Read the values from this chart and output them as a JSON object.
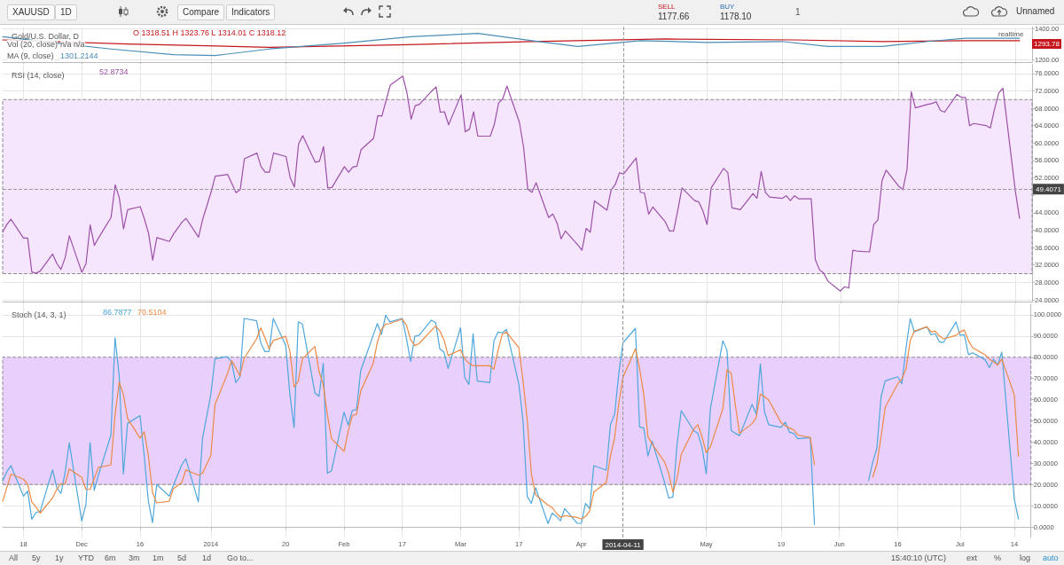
{
  "chart_data": [
    {
      "type": "line",
      "title": "Gold/U.S. Dollar, D",
      "annotations": [
        "XAUUSD",
        "1D",
        "Compare",
        "Indicators",
        "SELL",
        "1177.66",
        "BUY",
        "1178.10",
        "1",
        "Unnamed",
        "O 1318.51 H 1323.76 L 1314.01 C 1318.12",
        "Vol (20, close)",
        "n/a n/a",
        "MA (9, close)",
        "1301.2144",
        "realtime",
        "1293.78"
      ],
      "series": [
        {
          "color": "#c4161c",
          "x": [
            "2013-11-13",
            "2013-12-13",
            "2014-01-16",
            "2014-02-18",
            "2014-03-20",
            "2014-04-21",
            "2014-05-22",
            "2014-06-12",
            "2014-07-02",
            "2014-07-15"
          ],
          "values": [
            1326,
            1300,
            1279,
            1295,
            1316,
            1332,
            1326,
            1316,
            1321,
            1321
          ]
        },
        {
          "color": "#4b8db5",
          "x": [
            "2013-11-13",
            "2013-11-26",
            "2013-12-09",
            "2013-12-24",
            "2014-01-03",
            "2014-01-16",
            "2014-02-03",
            "2014-02-19",
            "2014-03-07",
            "2014-03-20",
            "2014-03-31",
            "2014-04-15",
            "2014-05-01",
            "2014-05-19",
            "2014-05-30",
            "2014-06-12",
            "2014-06-23",
            "2014-07-02",
            "2014-07-15"
          ],
          "values": [
            1347,
            1305,
            1268,
            1232,
            1226,
            1268,
            1305,
            1347,
            1368,
            1321,
            1284,
            1321,
            1310,
            1316,
            1284,
            1284,
            1316,
            1337,
            1337
          ]
        }
      ],
      "xlim": [
        "2013-11-13",
        "2014-07-18"
      ],
      "xticks": [
        {
          "value": "2013-11-18",
          "label": null
        },
        {
          "value": "2013-12-02",
          "label": null
        },
        {
          "value": "2013-12-16",
          "label": null
        },
        {
          "value": "2014-01-02",
          "label": null
        },
        {
          "value": "2014-01-20",
          "label": null
        },
        {
          "value": "2014-02-03",
          "label": null
        },
        {
          "value": "2014-02-17",
          "label": null
        },
        {
          "value": "2014-03-03",
          "label": null
        },
        {
          "value": "2014-03-17",
          "label": null
        },
        {
          "value": "2014-04-01",
          "label": null
        },
        {
          "value": "2014-05-01",
          "label": null
        },
        {
          "value": "2014-05-19",
          "label": null
        },
        {
          "value": "2014-06-02",
          "label": null
        },
        {
          "value": "2014-06-16",
          "label": null
        },
        {
          "value": "2014-07-01",
          "label": null
        },
        {
          "value": "2014-07-14",
          "label": null
        }
      ],
      "ylim": [
        1184,
        1410
      ],
      "yticks": [
        {
          "value": 1200,
          "label": "1200.00"
        },
        {
          "value": 1400,
          "label": "1400.00"
        }
      ],
      "ref_lines": [
        {
          "axis": "x",
          "value": "2014-04-11",
          "line_style": "dashed",
          "color": "#9a9a9a"
        }
      ],
      "grid": true,
      "tick_labels": "y"
    },
    {
      "type": "line",
      "title": "RSI (14, close)",
      "annotations": [
        "52.8734"
      ],
      "color": "#9c50a8",
      "x": [
        "2013-11-13",
        "2013-11-14",
        "2013-11-15",
        "2013-11-18",
        "2013-11-19",
        "2013-11-20",
        "2013-11-21",
        "2013-11-22",
        "2013-11-25",
        "2013-11-26",
        "2013-11-27",
        "2013-11-28",
        "2013-11-29",
        "2013-12-02",
        "2013-12-03",
        "2013-12-04",
        "2013-12-05",
        "2013-12-06",
        "2013-12-09",
        "2013-12-10",
        "2013-12-11",
        "2013-12-12",
        "2013-12-13",
        "2013-12-16",
        "2013-12-17",
        "2013-12-18",
        "2013-12-19",
        "2013-12-20",
        "2013-12-23",
        "2013-12-24",
        "2013-12-26",
        "2013-12-27",
        "2013-12-30",
        "2013-12-31",
        "2014-01-02",
        "2014-01-03",
        "2014-01-06",
        "2014-01-07",
        "2014-01-08",
        "2014-01-09",
        "2014-01-10",
        "2014-01-13",
        "2014-01-14",
        "2014-01-15",
        "2014-01-16",
        "2014-01-17",
        "2014-01-20",
        "2014-01-21",
        "2014-01-22",
        "2014-01-23",
        "2014-01-24",
        "2014-01-27",
        "2014-01-28",
        "2014-01-29",
        "2014-01-30",
        "2014-01-31",
        "2014-02-03",
        "2014-02-04",
        "2014-02-05",
        "2014-02-06",
        "2014-02-07",
        "2014-02-10",
        "2014-02-11",
        "2014-02-12",
        "2014-02-13",
        "2014-02-14",
        "2014-02-17",
        "2014-02-18",
        "2014-02-19",
        "2014-02-20",
        "2014-02-21",
        "2014-02-24",
        "2014-02-25",
        "2014-02-26",
        "2014-02-27",
        "2014-02-28",
        "2014-03-03",
        "2014-03-04",
        "2014-03-05",
        "2014-03-06",
        "2014-03-07",
        "2014-03-10",
        "2014-03-11",
        "2014-03-12",
        "2014-03-13",
        "2014-03-14",
        "2014-03-17",
        "2014-03-18",
        "2014-03-19",
        "2014-03-20",
        "2014-03-21",
        "2014-03-24",
        "2014-03-25",
        "2014-03-26",
        "2014-03-27",
        "2014-03-28",
        "2014-03-31",
        "2014-04-01",
        "2014-04-02",
        "2014-04-03",
        "2014-04-04",
        "2014-04-07",
        "2014-04-08",
        "2014-04-09",
        "2014-04-10",
        "2014-04-11",
        "2014-04-14",
        "2014-04-15",
        "2014-04-16",
        "2014-04-17",
        "2014-04-18",
        "2014-04-21",
        "2014-04-22",
        "2014-04-23",
        "2014-04-24",
        "2014-04-25",
        "2014-04-28",
        "2014-04-29",
        "2014-04-30",
        "2014-05-01",
        "2014-05-02",
        "2014-05-05",
        "2014-05-06",
        "2014-05-07",
        "2014-05-08",
        "2014-05-09",
        "2014-05-12",
        "2014-05-13",
        "2014-05-14",
        "2014-05-15",
        "2014-05-16",
        "2014-05-19",
        "2014-05-20",
        "2014-05-21",
        "2014-05-22",
        "2014-05-23",
        "2014-05-26",
        "2014-05-27",
        "2014-05-28",
        "2014-05-29",
        "2014-05-30",
        "2014-06-02",
        "2014-06-03",
        "2014-06-04",
        "2014-06-05",
        "2014-06-06",
        "2014-06-09",
        "2014-06-10",
        "2014-06-11",
        "2014-06-12",
        "2014-06-13",
        "2014-06-16",
        "2014-06-17",
        "2014-06-18",
        "2014-06-19",
        "2014-06-20",
        "2014-06-23",
        "2014-06-24",
        "2014-06-25",
        "2014-06-26",
        "2014-06-27",
        "2014-06-30",
        "2014-07-01",
        "2014-07-02",
        "2014-07-03",
        "2014-07-04",
        "2014-07-07",
        "2014-07-08",
        "2014-07-09",
        "2014-07-10",
        "2014-07-11",
        "2014-07-14",
        "2014-07-15"
      ],
      "values": [
        39.6,
        41.3,
        42.5,
        38.2,
        38.2,
        30.4,
        30.1,
        30.6,
        34.5,
        32.3,
        31.0,
        33.7,
        38.7,
        30.3,
        32.3,
        41.2,
        36.5,
        38.2,
        42.9,
        50.4,
        47.4,
        40.3,
        44.7,
        45.4,
        42.6,
        39.3,
        33.1,
        38.3,
        37.4,
        39.1,
        41.8,
        42.7,
        38.4,
        42.5,
        48.7,
        52.4,
        52.8,
        50.7,
        48.6,
        49.3,
        56.4,
        57.7,
        54.6,
        53.3,
        53.3,
        57.7,
        56.9,
        52.0,
        49.9,
        59.8,
        61.7,
        55.6,
        55.8,
        59.2,
        49.7,
        49.8,
        54.6,
        53.3,
        54.5,
        54.7,
        58.5,
        61.1,
        66.3,
        66.2,
        69.8,
        73.3,
        75.4,
        71.6,
        65.5,
        68.6,
        68.9,
        72.0,
        72.9,
        67.1,
        67.2,
        64.2,
        71.1,
        62.6,
        63.2,
        67.2,
        61.6,
        61.6,
        64.4,
        69.2,
        70.2,
        73.1,
        64.7,
        59.0,
        49.4,
        48.7,
        50.9,
        42.9,
        43.7,
        41.7,
        38.0,
        39.8,
        36.6,
        35.4,
        40.4,
        39.5,
        46.7,
        44.6,
        49.2,
        50.5,
        53.2,
        52.9,
        56.6,
        48.7,
        48.5,
        43.7,
        45.3,
        41.9,
        39.8,
        39.8,
        44.6,
        49.7,
        46.8,
        46.5,
        44.5,
        41.3,
        49.7,
        54.2,
        53.2,
        45.1,
        44.9,
        44.7,
        48.4,
        47.3,
        53.5,
        48.7,
        47.6,
        47.3,
        47.9,
        46.8,
        47.9,
        47.2,
        47.2,
        33.2,
        30.9,
        30.1,
        28.3,
        26.0,
        27.0,
        26.7,
        35.4,
        35.2,
        35.0,
        41.3,
        42.3,
        51.4,
        53.8,
        50.1,
        49.3,
        54.0,
        71.8,
        68.1,
        68.9,
        69.1,
        69.5,
        67.5,
        67.1,
        71.2,
        70.5,
        70.5,
        64.0,
        64.5,
        64.0,
        63.5,
        67.9,
        71.5,
        72.6,
        48.9,
        42.7
      ],
      "xlim": [
        "2013-11-13",
        "2014-07-18"
      ],
      "xticks": [
        {
          "value": "2013-11-18",
          "label": null
        },
        {
          "value": "2013-12-02",
          "label": null
        },
        {
          "value": "2013-12-16",
          "label": null
        },
        {
          "value": "2014-01-02",
          "label": null
        },
        {
          "value": "2014-01-20",
          "label": null
        },
        {
          "value": "2014-02-03",
          "label": null
        },
        {
          "value": "2014-02-17",
          "label": null
        },
        {
          "value": "2014-03-03",
          "label": null
        },
        {
          "value": "2014-03-17",
          "label": null
        },
        {
          "value": "2014-04-01",
          "label": null
        },
        {
          "value": "2014-05-01",
          "label": null
        },
        {
          "value": "2014-05-19",
          "label": null
        },
        {
          "value": "2014-06-02",
          "label": null
        },
        {
          "value": "2014-06-16",
          "label": null
        },
        {
          "value": "2014-07-01",
          "label": null
        },
        {
          "value": "2014-07-14",
          "label": null
        }
      ],
      "ylim": [
        23.5,
        78
      ],
      "yticks": [
        {
          "value": 24,
          "label": "24.0000"
        },
        {
          "value": 28,
          "label": "28.0000"
        },
        {
          "value": 32,
          "label": "32.0000"
        },
        {
          "value": 36,
          "label": "36.0000"
        },
        {
          "value": 40,
          "label": "40.0000"
        },
        {
          "value": 44,
          "label": "44.0000"
        },
        {
          "value": 48,
          "label": null
        },
        {
          "value": 52,
          "label": "52.0000"
        },
        {
          "value": 56,
          "label": "56.0000"
        },
        {
          "value": 60,
          "label": "60.0000"
        },
        {
          "value": 64,
          "label": "64.0000"
        },
        {
          "value": 68,
          "label": "68.0000"
        },
        {
          "value": 72,
          "label": "72.0000"
        },
        {
          "value": 76,
          "label": "76.0000"
        }
      ],
      "bands": [
        {
          "axis": "y",
          "from": 30,
          "to": 70,
          "color": "#f5e6fd"
        }
      ],
      "ref_lines": [
        {
          "axis": "y",
          "value": 49.4071,
          "label": "49.4071",
          "line_style": "dashed",
          "color": "#9a9a9a"
        },
        {
          "axis": "x",
          "value": "2014-04-11",
          "line_style": "dashed",
          "color": "#9a9a9a"
        }
      ],
      "grid": true,
      "tick_labels": "y"
    },
    {
      "type": "line",
      "title": "Stoch (14, 3, 1)",
      "annotations": [
        "86.7877",
        "70.5104",
        "All",
        "5y",
        "1y",
        "YTD",
        "6m",
        "3m",
        "1m",
        "5d",
        "1d",
        "Go to...",
        "15:40:10 (UTC)",
        "ext",
        "%",
        "log",
        "auto"
      ],
      "x": [
        "2013-11-13",
        "2013-11-14",
        "2013-11-15",
        "2013-11-18",
        "2013-11-19",
        "2013-11-20",
        "2013-11-21",
        "2013-11-22",
        "2013-11-25",
        "2013-11-26",
        "2013-11-27",
        "2013-11-28",
        "2013-11-29",
        "2013-12-02",
        "2013-12-03",
        "2013-12-04",
        "2013-12-05",
        "2013-12-06",
        "2013-12-09",
        "2013-12-10",
        "2013-12-11",
        "2013-12-12",
        "2013-12-13",
        "2013-12-16",
        "2013-12-17",
        "2013-12-18",
        "2013-12-19",
        "2013-12-20",
        "2013-12-23",
        "2013-12-24",
        "2013-12-26",
        "2013-12-27",
        "2013-12-30",
        "2013-12-31",
        "2014-01-02",
        "2014-01-03",
        "2014-01-06",
        "2014-01-07",
        "2014-01-08",
        "2014-01-09",
        "2014-01-10",
        "2014-01-13",
        "2014-01-14",
        "2014-01-15",
        "2014-01-16",
        "2014-01-17",
        "2014-01-20",
        "2014-01-21",
        "2014-01-22",
        "2014-01-23",
        "2014-01-24",
        "2014-01-27",
        "2014-01-28",
        "2014-01-29",
        "2014-01-30",
        "2014-01-31",
        "2014-02-03",
        "2014-02-04",
        "2014-02-05",
        "2014-02-06",
        "2014-02-07",
        "2014-02-10",
        "2014-02-11",
        "2014-02-12",
        "2014-02-13",
        "2014-02-14",
        "2014-02-17",
        "2014-02-18",
        "2014-02-19",
        "2014-02-20",
        "2014-02-21",
        "2014-02-24",
        "2014-02-25",
        "2014-02-26",
        "2014-02-27",
        "2014-02-28",
        "2014-03-03",
        "2014-03-04",
        "2014-03-05",
        "2014-03-06",
        "2014-03-07",
        "2014-03-10",
        "2014-03-11",
        "2014-03-12",
        "2014-03-13",
        "2014-03-14",
        "2014-03-17",
        "2014-03-18",
        "2014-03-19",
        "2014-03-20",
        "2014-03-21",
        "2014-03-24",
        "2014-03-25",
        "2014-03-26",
        "2014-03-27",
        "2014-03-28",
        "2014-03-31",
        "2014-04-01",
        "2014-04-02",
        "2014-04-03",
        "2014-04-04",
        "2014-04-07",
        "2014-04-08",
        "2014-04-09",
        "2014-04-10",
        "2014-04-11",
        "2014-04-14",
        "2014-04-15",
        "2014-04-16",
        "2014-04-17",
        "2014-04-18",
        "2014-04-21",
        "2014-04-22",
        "2014-04-23",
        "2014-04-24",
        "2014-04-25",
        "2014-04-28",
        "2014-04-29",
        "2014-04-30",
        "2014-05-01",
        "2014-05-02",
        "2014-05-05",
        "2014-05-06",
        "2014-05-07",
        "2014-05-08",
        "2014-05-09",
        "2014-05-12",
        "2014-05-13",
        "2014-05-14",
        "2014-05-15",
        "2014-05-16",
        "2014-05-19",
        "2014-05-20",
        "2014-05-21",
        "2014-05-22",
        "2014-05-23",
        "2014-05-26",
        "2014-05-27",
        "2014-05-28",
        "2014-05-29",
        "2014-05-30",
        "2014-06-02",
        "2014-06-03",
        "2014-06-04",
        "2014-06-05",
        "2014-06-06",
        "2014-06-09",
        "2014-06-10",
        "2014-06-11",
        "2014-06-12",
        "2014-06-13",
        "2014-06-16",
        "2014-06-17",
        "2014-06-18",
        "2014-06-19",
        "2014-06-20",
        "2014-06-23",
        "2014-06-24",
        "2014-06-25",
        "2014-06-26",
        "2014-06-27",
        "2014-06-30",
        "2014-07-01",
        "2014-07-02",
        "2014-07-03",
        "2014-07-04",
        "2014-07-07",
        "2014-07-08",
        "2014-07-09",
        "2014-07-10",
        "2014-07-11",
        "2014-07-14",
        "2014-07-15"
      ],
      "series": [
        {
          "color": "#4ea7dd",
          "values": [
            21.7,
            26.0,
            28.9,
            14.5,
            16.9,
            3.6,
            6.8,
            7.3,
            26.9,
            18.5,
            15.8,
            25.7,
            39.6,
            2.8,
            10.5,
            39.7,
            17.2,
            24.4,
            43.2,
            89.2,
            71.2,
            24.9,
            48.8,
            52.5,
            33.6,
            12.1,
            2.0,
            20.1,
            14.5,
            19.6,
            29.2,
            32.1,
            11.8,
            41.6,
            62.4,
            79.2,
            80.3,
            77.6,
            68.0,
            70.7,
            98.3,
            97.2,
            86.7,
            82.7,
            82.8,
            98.3,
            85.5,
            62.4,
            46.9,
            96.7,
            95.6,
            63.2,
            61.6,
            77.1,
            25.3,
            26.5,
            54.1,
            48.0,
            54.9,
            55.4,
            73.6,
            90.3,
            95.9,
            90.8,
            99.8,
            96.7,
            98.3,
            88.7,
            78.0,
            89.9,
            90.3,
            97.5,
            96.3,
            84.0,
            82.4,
            74.7,
            93.9,
            70.4,
            67.2,
            91.1,
            68.8,
            68.0,
            87.6,
            91.9,
            91.5,
            93.1,
            67.2,
            49.9,
            14.4,
            11.1,
            18.5,
            1.6,
            6.5,
            4.9,
            2.9,
            8.6,
            1.7,
            1.7,
            11.1,
            8.6,
            28.9,
            26.8,
            48.2,
            53.2,
            72.2,
            86.8,
            93.6,
            47.1,
            46.6,
            33.4,
            40.5,
            21.0,
            13.6,
            14.1,
            39.2,
            54.8,
            45.4,
            44.1,
            37.5,
            25.1,
            55.7,
            87.8,
            83.2,
            45.4,
            44.1,
            43.0,
            57.8,
            53.2,
            76.8,
            54.3,
            48.2,
            46.9,
            49.4,
            44.6,
            44.1,
            41.6,
            42.1,
            1.2,
            null,
            null,
            null,
            null,
            null,
            null,
            null,
            null,
            21.8,
            30.6,
            37.2,
            61.4,
            68.9,
            70.8,
            67.5,
            84.5,
            98.2,
            92.0,
            94.4,
            90.6,
            91.1,
            87.3,
            87.0,
            96.6,
            90.3,
            90.6,
            81.2,
            82.1,
            78.8,
            75.1,
            79.1,
            76.3,
            82.4,
            13.0,
            3.7
          ]
        },
        {
          "color": "#ec8a45",
          "values": [
            12.1,
            18.5,
            24.9,
            22.5,
            20.1,
            11.8,
            9.4,
            6.5,
            13.7,
            17.7,
            20.4,
            20.4,
            27.3,
            23.3,
            17.7,
            17.7,
            22.8,
            28.1,
            29.2,
            52.8,
            68.3,
            62.4,
            51.2,
            41.9,
            44.8,
            33.6,
            16.1,
            11.3,
            12.1,
            18.0,
            20.9,
            26.9,
            24.4,
            25.3,
            33.6,
            57.6,
            72.3,
            78.4,
            74.9,
            71.2,
            79.5,
            88.7,
            93.9,
            89.2,
            84.0,
            87.9,
            89.9,
            82.8,
            65.9,
            68.8,
            79.2,
            85.1,
            73.3,
            67.2,
            52.8,
            41.6,
            35.6,
            45.1,
            52.5,
            53.1,
            64.0,
            77.1,
            87.1,
            93.1,
            95.6,
            95.9,
            98.0,
            95.1,
            88.3,
            85.5,
            86.4,
            92.7,
            94.7,
            92.4,
            88.3,
            80.8,
            83.5,
            79.2,
            77.1,
            76.0,
            76.0,
            76.0,
            74.4,
            83.2,
            90.8,
            91.9,
            84.5,
            68.9,
            50.7,
            25.1,
            15.2,
            10.3,
            9.1,
            6.5,
            4.5,
            5.3,
            4.5,
            3.7,
            4.9,
            7.5,
            16.4,
            21.0,
            33.4,
            42.1,
            58.1,
            70.5,
            84.0,
            74.6,
            62.3,
            42.5,
            39.2,
            30.6,
            25.1,
            16.4,
            23.0,
            34.2,
            46.1,
            48.2,
            42.5,
            35.0,
            37.8,
            55.7,
            74.1,
            72.5,
            57.3,
            44.1,
            48.7,
            51.5,
            62.6,
            61.4,
            59.8,
            49.1,
            47.7,
            46.6,
            45.8,
            43.3,
            42.1,
            29.3,
            null,
            null,
            null,
            null,
            null,
            null,
            null,
            null,
            null,
            23.5,
            29.6,
            42.5,
            56.5,
            67.5,
            69.7,
            74.6,
            87.8,
            92.3,
            94.4,
            92.0,
            92.3,
            90.0,
            88.7,
            90.3,
            92.0,
            92.8,
            87.8,
            84.5,
            81.2,
            79.1,
            77.9,
            76.3,
            79.1,
            62.3,
            33.4
          ]
        }
      ],
      "xlim": [
        "2013-11-13",
        "2014-07-18"
      ],
      "xticks": [
        {
          "value": "2013-11-18",
          "label": "18"
        },
        {
          "value": "2013-12-02",
          "label": "Dec"
        },
        {
          "value": "2013-12-16",
          "label": "16"
        },
        {
          "value": "2014-01-02",
          "label": "2014"
        },
        {
          "value": "2014-01-20",
          "label": "20"
        },
        {
          "value": "2014-02-03",
          "label": "Feb"
        },
        {
          "value": "2014-02-17",
          "label": "17"
        },
        {
          "value": "2014-03-03",
          "label": "Mar"
        },
        {
          "value": "2014-03-17",
          "label": "17"
        },
        {
          "value": "2014-04-01",
          "label": "Apr"
        },
        {
          "value": "2014-05-01",
          "label": "May"
        },
        {
          "value": "2014-05-19",
          "label": "19"
        },
        {
          "value": "2014-06-02",
          "label": "Jun"
        },
        {
          "value": "2014-06-16",
          "label": "16"
        },
        {
          "value": "2014-07-01",
          "label": "Jul"
        },
        {
          "value": "2014-07-14",
          "label": "14"
        }
      ],
      "ylim": [
        -5,
        105
      ],
      "yticks": [
        {
          "value": 0,
          "label": "0.0000"
        },
        {
          "value": 10,
          "label": "10.0000"
        },
        {
          "value": 20,
          "label": "20.0000"
        },
        {
          "value": 30,
          "label": "30.0000"
        },
        {
          "value": 40,
          "label": "40.0000"
        },
        {
          "value": 50,
          "label": "50.0000"
        },
        {
          "value": 60,
          "label": "60.0000"
        },
        {
          "value": 70,
          "label": "70.0000"
        },
        {
          "value": 80,
          "label": "80.0000"
        },
        {
          "value": 90,
          "label": "90.0000"
        },
        {
          "value": 100,
          "label": "100.0000"
        }
      ],
      "bands": [
        {
          "axis": "y",
          "from": 20,
          "to": 80,
          "color": "#e8cffc"
        }
      ],
      "ref_lines": [
        {
          "axis": "x",
          "value": "2014-04-11",
          "label": "2014-04-11",
          "line_style": "dashed",
          "color": "#9a9a9a"
        }
      ],
      "grid": true
    }
  ]
}
